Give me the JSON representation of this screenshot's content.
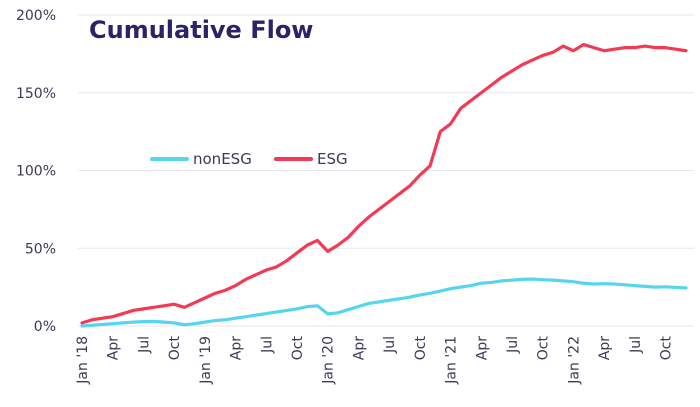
{
  "chart_data": {
    "type": "line",
    "title": "Cumulative Flow",
    "xlabel": "",
    "ylabel": "",
    "ylim": [
      0,
      200
    ],
    "yticks": [
      "0%",
      "50%",
      "100%",
      "150%",
      "200%"
    ],
    "x_tick_labels": [
      "Jan '18",
      "Apr",
      "Jul",
      "Oct",
      "Jan '19",
      "Apr",
      "Jul",
      "Oct",
      "Jan '20",
      "Apr",
      "Jul",
      "Oct",
      "Jan '21",
      "Apr",
      "Jul",
      "Oct",
      "Jan '22",
      "Apr",
      "Jul",
      "Oct"
    ],
    "x": [
      "2018-01",
      "2018-02",
      "2018-03",
      "2018-04",
      "2018-05",
      "2018-06",
      "2018-07",
      "2018-08",
      "2018-09",
      "2018-10",
      "2018-11",
      "2018-12",
      "2019-01",
      "2019-02",
      "2019-03",
      "2019-04",
      "2019-05",
      "2019-06",
      "2019-07",
      "2019-08",
      "2019-09",
      "2019-10",
      "2019-11",
      "2019-12",
      "2020-01",
      "2020-02",
      "2020-03",
      "2020-04",
      "2020-05",
      "2020-06",
      "2020-07",
      "2020-08",
      "2020-09",
      "2020-10",
      "2020-11",
      "2020-12",
      "2021-01",
      "2021-02",
      "2021-03",
      "2021-04",
      "2021-05",
      "2021-06",
      "2021-07",
      "2021-08",
      "2021-09",
      "2021-10",
      "2021-11",
      "2021-12",
      "2022-01",
      "2022-02",
      "2022-03",
      "2022-04",
      "2022-05",
      "2022-06",
      "2022-07",
      "2022-08",
      "2022-09",
      "2022-10",
      "2022-11",
      "2022-12"
    ],
    "series": [
      {
        "name": "nonESG",
        "color": "#56d6ee",
        "values": [
          0,
          0.5,
          1,
          1.5,
          2,
          2.5,
          2.8,
          3,
          2.5,
          2,
          0.8,
          1.5,
          2.5,
          3.5,
          4,
          5,
          6,
          7,
          8,
          9,
          10,
          11,
          12.5,
          13,
          7.8,
          8.5,
          10.5,
          12.5,
          14.5,
          15.5,
          16.5,
          17.5,
          18.5,
          20,
          21,
          22.5,
          24,
          25,
          26,
          27.5,
          28,
          29,
          29.5,
          30,
          30.2,
          29.8,
          29.5,
          29,
          28.5,
          27.5,
          27,
          27.2,
          27,
          26.5,
          26,
          25.5,
          25,
          25.2,
          24.8,
          24.5
        ]
      },
      {
        "name": "ESG",
        "color": "#f23a55",
        "values": [
          2,
          4,
          5,
          6,
          8,
          10,
          11,
          12,
          13,
          14,
          12,
          15,
          18,
          21,
          23,
          26,
          30,
          33,
          36,
          38,
          42,
          47,
          52,
          55,
          48,
          52,
          57,
          64,
          70,
          75,
          80,
          85,
          90,
          97,
          103,
          125,
          130,
          140,
          145,
          150,
          155,
          160,
          164,
          168,
          171,
          174,
          176,
          180,
          177,
          181,
          179,
          177,
          178,
          179,
          179,
          180,
          179,
          179,
          178,
          177
        ]
      }
    ],
    "legend": "center-left",
    "grid": "y-horizontal"
  }
}
